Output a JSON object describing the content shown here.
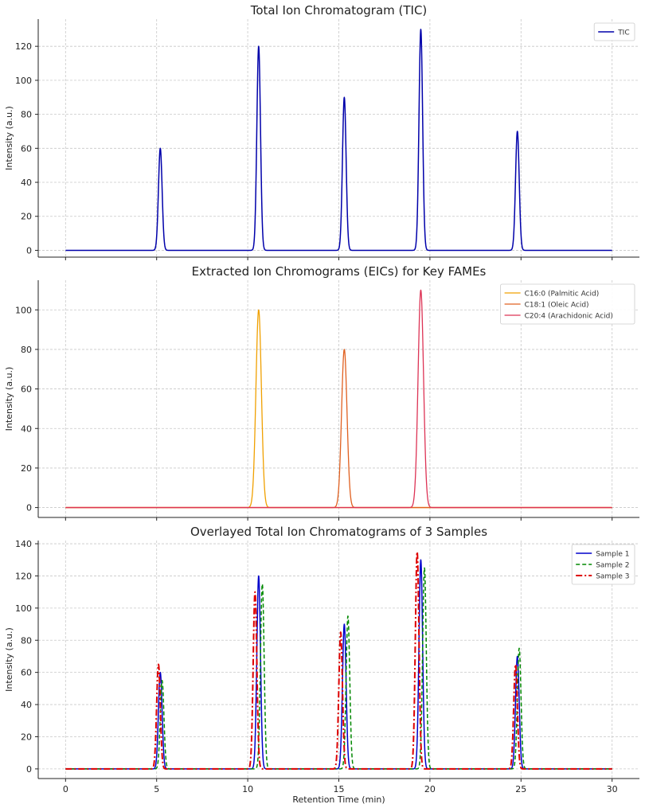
{
  "chart_data": [
    {
      "type": "line",
      "title": "Total Ion Chromatogram (TIC)",
      "ylabel": "Intensity (a.u.)",
      "xlabel": "",
      "xlim": [
        0,
        30
      ],
      "ylim": [
        -4,
        136
      ],
      "yticks": [
        0,
        20,
        40,
        60,
        80,
        100,
        120
      ],
      "xticks": [
        0,
        5,
        10,
        15,
        20,
        25,
        30
      ],
      "show_xticklabels": false,
      "grid": true,
      "legend": "top-right",
      "series": [
        {
          "name": "TIC",
          "color": "#0000aa",
          "style": "solid",
          "width": 1.5,
          "peaks": [
            {
              "x": 5.2,
              "y": 60
            },
            {
              "x": 10.6,
              "y": 120
            },
            {
              "x": 15.3,
              "y": 90
            },
            {
              "x": 19.5,
              "y": 130
            },
            {
              "x": 24.8,
              "y": 70
            }
          ],
          "sigma": 0.1
        }
      ]
    },
    {
      "type": "line",
      "title": "Extracted Ion Chromograms (EICs) for Key FAMEs",
      "ylabel": "Intensity (a.u.)",
      "xlabel": "",
      "xlim": [
        0,
        30
      ],
      "ylim": [
        -5,
        115
      ],
      "yticks": [
        0,
        20,
        40,
        60,
        80,
        100
      ],
      "xticks": [
        0,
        5,
        10,
        15,
        20,
        25,
        30
      ],
      "show_xticklabels": false,
      "grid": true,
      "legend": "top-right",
      "series": [
        {
          "name": "C16:0 (Palmitic Acid)",
          "color": "#f0a000",
          "style": "solid",
          "width": 1.3,
          "peaks": [
            {
              "x": 10.6,
              "y": 100
            }
          ],
          "sigma": 0.15
        },
        {
          "name": "C18:1 (Oleic Acid)",
          "color": "#e06020",
          "style": "solid",
          "width": 1.3,
          "peaks": [
            {
              "x": 15.3,
              "y": 80
            }
          ],
          "sigma": 0.15
        },
        {
          "name": "C20:4 (Arachidonic Acid)",
          "color": "#dd3355",
          "style": "solid",
          "width": 1.3,
          "peaks": [
            {
              "x": 19.5,
              "y": 110
            }
          ],
          "sigma": 0.15
        }
      ]
    },
    {
      "type": "line",
      "title": "Overlayed Total Ion Chromatograms of 3 Samples",
      "ylabel": "Intensity (a.u.)",
      "xlabel": "Retention Time (min)",
      "xlim": [
        0,
        30
      ],
      "ylim": [
        -6,
        142
      ],
      "yticks": [
        0,
        20,
        40,
        60,
        80,
        100,
        120,
        140
      ],
      "xticks": [
        0,
        5,
        10,
        15,
        20,
        25,
        30
      ],
      "show_xticklabels": true,
      "grid": true,
      "legend": "top-right",
      "series": [
        {
          "name": "Sample 1",
          "color": "#0000cc",
          "style": "solid",
          "width": 1.5,
          "peaks": [
            {
              "x": 5.2,
              "y": 60
            },
            {
              "x": 10.6,
              "y": 120
            },
            {
              "x": 15.3,
              "y": 90
            },
            {
              "x": 19.5,
              "y": 130
            },
            {
              "x": 24.8,
              "y": 70
            }
          ],
          "sigma": 0.1
        },
        {
          "name": "Sample 2",
          "color": "#008800",
          "style": "dashed",
          "width": 1.5,
          "peaks": [
            {
              "x": 5.3,
              "y": 55
            },
            {
              "x": 10.8,
              "y": 115
            },
            {
              "x": 15.5,
              "y": 95
            },
            {
              "x": 19.7,
              "y": 125
            },
            {
              "x": 24.9,
              "y": 75
            }
          ],
          "sigma": 0.1
        },
        {
          "name": "Sample 3",
          "color": "#dd0000",
          "style": "dashdot",
          "width": 2,
          "peaks": [
            {
              "x": 5.1,
              "y": 65
            },
            {
              "x": 10.4,
              "y": 110
            },
            {
              "x": 15.1,
              "y": 85
            },
            {
              "x": 19.3,
              "y": 135
            },
            {
              "x": 24.7,
              "y": 65
            }
          ],
          "sigma": 0.1
        }
      ]
    }
  ]
}
